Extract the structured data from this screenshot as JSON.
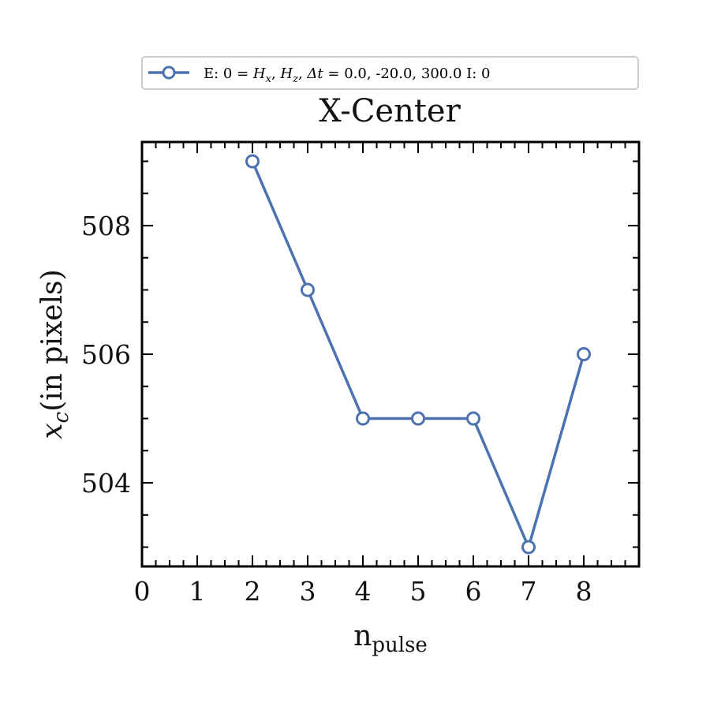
{
  "chart_data": {
    "type": "line",
    "title": "X-Center",
    "xlabel": "n",
    "xlabel_subscript": "pulse",
    "ylabel_var": "x",
    "ylabel_sub": "c",
    "ylabel_text": "(in pixels)",
    "xlim": [
      0,
      9
    ],
    "ylim": [
      502.7,
      509.3
    ],
    "x_ticks": [
      0,
      1,
      2,
      3,
      4,
      5,
      6,
      7,
      8
    ],
    "y_ticks": [
      504,
      506,
      508
    ],
    "grid": false,
    "legend_position": "top-center",
    "series": [
      {
        "name": "E: 0 = H_x, H_z, Δt = 0.0, -20.0, 300.0 I: 0",
        "x": [
          2,
          3,
          4,
          5,
          6,
          7,
          8
        ],
        "y": [
          509,
          507,
          505,
          505,
          505,
          503,
          506
        ],
        "color": "#4c72b0",
        "marker": "open-circle"
      }
    ]
  },
  "legend": {
    "prefix": "E: 0 = ",
    "var1": "H",
    "var1_sub": "x",
    "sep": ", ",
    "var2": "H",
    "var2_sub": "z",
    "delta_t": "Δt",
    "eq": " = ",
    "values": " 0.0, -20.0, 300.0 I: 0"
  }
}
